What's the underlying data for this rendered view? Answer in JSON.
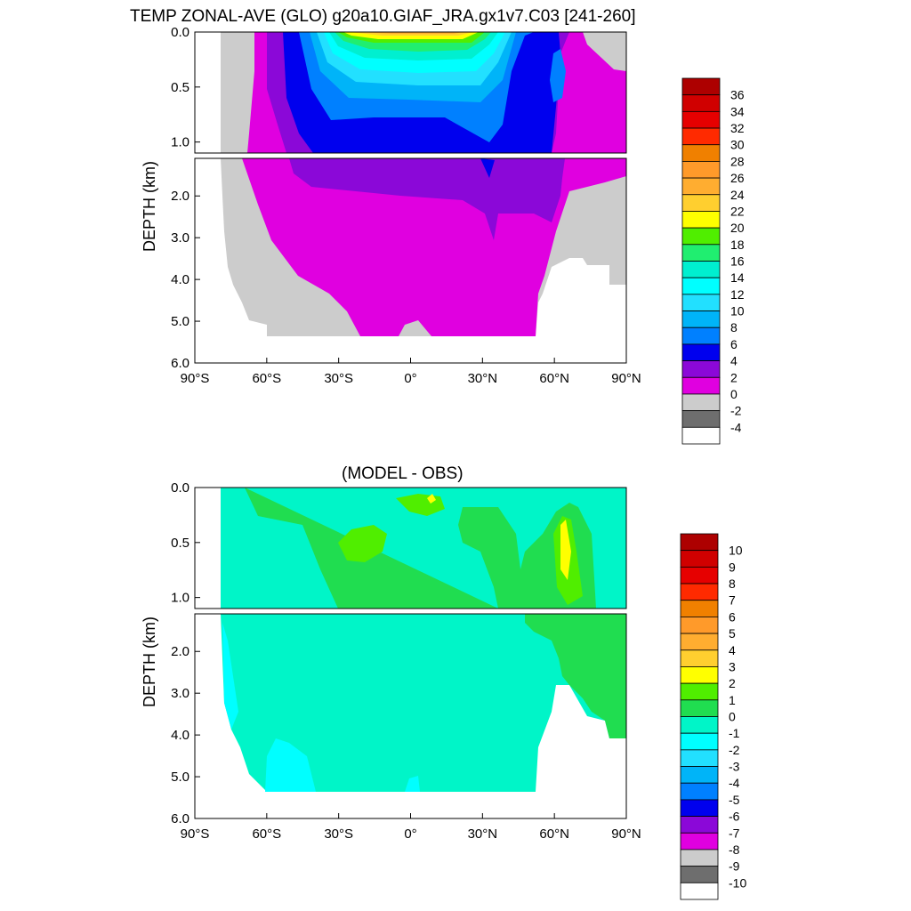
{
  "chart_data": [
    {
      "type": "heatmap",
      "title": "TEMP ZONAL-AVE (GLO) g20a10.GIAF_JRA.gx1v7.C03 [241-260]",
      "ylabel": "DEPTH (km)",
      "xlabel": "",
      "xlim": [
        -90,
        90
      ],
      "ylim": [
        6.0,
        0.0
      ],
      "x_ticks": [
        "90°S",
        "60°S",
        "30°S",
        "0°",
        "30°N",
        "60°N",
        "90°N"
      ],
      "y_ticks_upper": [
        "0.0",
        "0.5",
        "1.0"
      ],
      "y_ticks_lower": [
        "2.0",
        "3.0",
        "4.0",
        "5.0",
        "6.0"
      ],
      "colorbar_labels": [
        "36",
        "34",
        "32",
        "30",
        "28",
        "26",
        "24",
        "22",
        "20",
        "18",
        "16",
        "14",
        "12",
        "10",
        "8",
        "6",
        "4",
        "2",
        "0",
        "-2",
        "-4"
      ],
      "colorbar_colors": [
        "#ad0000",
        "#d00000",
        "#e60000",
        "#ff2a00",
        "#f08000",
        "#ff9a2a",
        "#ffad30",
        "#ffcf2f",
        "#ffff00",
        "#50ee00",
        "#20ee70",
        "#00efd0",
        "#00ffff",
        "#22e0ff",
        "#00b4f8",
        "#0080ff",
        "#0000ee",
        "#8b08d8",
        "#e000e0",
        "#cccccc",
        "#6e6e6e",
        "#ffffff"
      ]
    },
    {
      "type": "heatmap",
      "title": "(MODEL - OBS)",
      "ylabel": "DEPTH (km)",
      "xlabel": "",
      "xlim": [
        -90,
        90
      ],
      "ylim": [
        6.0,
        0.0
      ],
      "x_ticks": [
        "90°S",
        "60°S",
        "30°S",
        "0°",
        "30°N",
        "60°N",
        "90°N"
      ],
      "y_ticks_upper": [
        "0.0",
        "0.5",
        "1.0"
      ],
      "y_ticks_lower": [
        "2.0",
        "3.0",
        "4.0",
        "5.0",
        "6.0"
      ],
      "colorbar_labels": [
        "10",
        "9",
        "8",
        "7",
        "6",
        "5",
        "4",
        "3",
        "2",
        "1",
        "0",
        "-1",
        "-2",
        "-3",
        "-4",
        "-5",
        "-6",
        "-7",
        "-8",
        "-9",
        "-10"
      ],
      "colorbar_colors": [
        "#ad0000",
        "#d00000",
        "#e60000",
        "#ff2a00",
        "#f08000",
        "#ff9a2a",
        "#ffad30",
        "#ffcf2f",
        "#ffff00",
        "#50ee00",
        "#20dd50",
        "#00f5c8",
        "#00ffff",
        "#22e0ff",
        "#00b4f8",
        "#0080ff",
        "#0000ee",
        "#8b08d8",
        "#e000e0",
        "#cccccc",
        "#6e6e6e",
        "#ffffff"
      ]
    }
  ]
}
